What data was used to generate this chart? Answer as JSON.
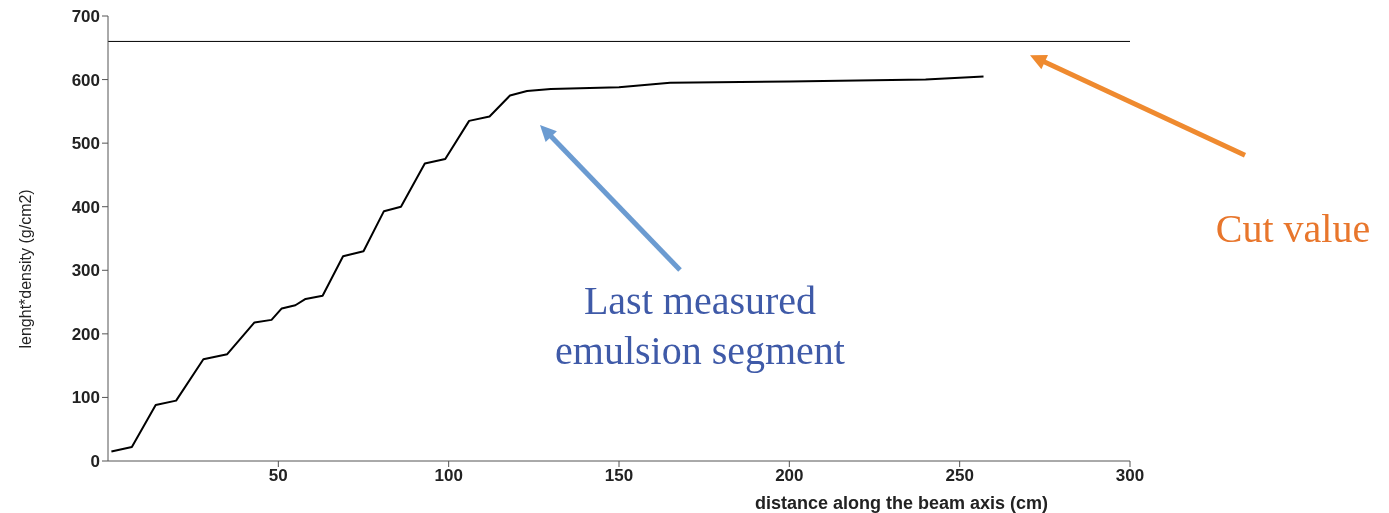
{
  "chart_data": {
    "type": "line",
    "xlabel": "distance along the beam axis (cm)",
    "ylabel": "lenght*density (g/cm2)",
    "xlim": [
      0,
      300
    ],
    "xticks": [
      50,
      100,
      150,
      200,
      250,
      300
    ],
    "ylim": [
      0,
      700
    ],
    "yticks": [
      0,
      100,
      200,
      300,
      400,
      500,
      600,
      700
    ],
    "marker": "none",
    "line_style": "solid",
    "series": [
      {
        "color": "#000000",
        "x": [
          1,
          7,
          14,
          20,
          28,
          35,
          43,
          48,
          51,
          55,
          58,
          63,
          69,
          75,
          81,
          86,
          93,
          99,
          106,
          112,
          118,
          123,
          130,
          150,
          165,
          200,
          240,
          257
        ],
        "values": [
          15,
          22,
          88,
          95,
          160,
          168,
          218,
          222,
          240,
          245,
          255,
          260,
          322,
          330,
          393,
          400,
          468,
          475,
          535,
          542,
          575,
          582,
          585,
          588,
          595,
          597,
          600,
          605
        ]
      }
    ],
    "ref_lines": [
      {
        "axis": "y",
        "value": 660,
        "color": "#000000"
      }
    ],
    "annotations": [
      "Last measured emulsion segment",
      "Cut value"
    ]
  }
}
